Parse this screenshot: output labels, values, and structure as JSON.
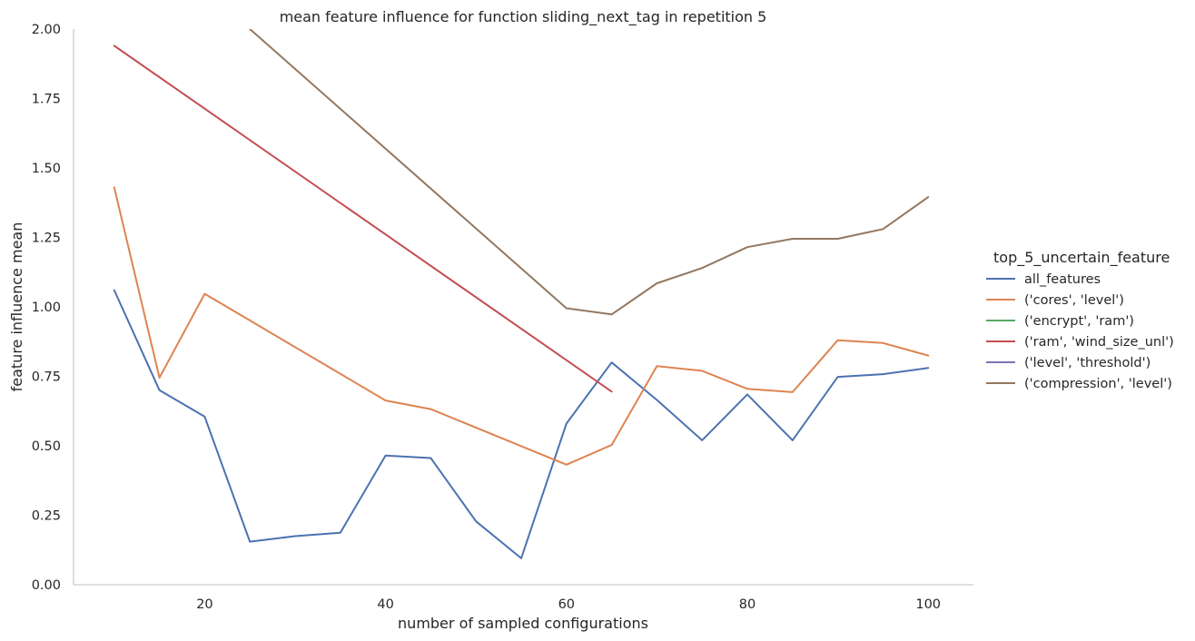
{
  "chart_data": {
    "type": "line",
    "title": "mean feature influence for function sliding_next_tag in repetition 5",
    "xlabel": "number of sampled configurations",
    "ylabel": "feature influence mean",
    "xlim": [
      5.5,
      105
    ],
    "ylim": [
      0,
      2.0
    ],
    "xticks": [
      20,
      40,
      60,
      80,
      100
    ],
    "yticks": [
      0.0,
      0.25,
      0.5,
      0.75,
      1.0,
      1.25,
      1.5,
      1.75,
      2.0
    ],
    "ytick_labels": [
      "0.00",
      "0.25",
      "0.50",
      "0.75",
      "1.00",
      "1.25",
      "1.50",
      "1.75",
      "2.00"
    ],
    "grid": false,
    "legend": {
      "title": "top_5_uncertain_feature",
      "placement": "right"
    },
    "series": [
      {
        "name": "all_features",
        "color": "#4c72b0",
        "x": [
          10,
          15,
          20,
          25,
          30,
          35,
          40,
          45,
          50,
          55,
          60,
          65,
          70,
          75,
          80,
          85,
          90,
          95,
          100
        ],
        "y": [
          1.06,
          0.7,
          0.605,
          0.155,
          0.175,
          0.187,
          0.465,
          0.456,
          0.228,
          0.095,
          0.58,
          0.8,
          0.665,
          0.52,
          0.685,
          0.52,
          0.748,
          0.758,
          0.78
        ]
      },
      {
        "name": "('cores', 'level')",
        "color": "#dd8452",
        "x": [
          10,
          15,
          20,
          40,
          45,
          60,
          65,
          70,
          75,
          80,
          85,
          90,
          95,
          100
        ],
        "y": [
          1.43,
          0.745,
          1.047,
          0.663,
          0.632,
          0.432,
          0.503,
          0.787,
          0.77,
          0.705,
          0.693,
          0.88,
          0.87,
          0.825
        ]
      },
      {
        "name": "('encrypt', 'ram')",
        "color": "#55a868",
        "x": [],
        "y": []
      },
      {
        "name": "('ram', 'wind_size_unl')",
        "color": "#c44e52",
        "x": [
          10,
          65
        ],
        "y": [
          1.94,
          0.695
        ]
      },
      {
        "name": "('level', 'threshold')",
        "color": "#8172b3",
        "x": [],
        "y": []
      },
      {
        "name": "('compression', 'level')",
        "color": "#937860",
        "x": [
          25,
          60,
          65,
          70,
          75,
          80,
          85,
          90,
          95,
          100
        ],
        "y": [
          2.0,
          0.995,
          0.973,
          1.085,
          1.14,
          1.215,
          1.245,
          1.245,
          1.28,
          1.395
        ]
      }
    ]
  }
}
